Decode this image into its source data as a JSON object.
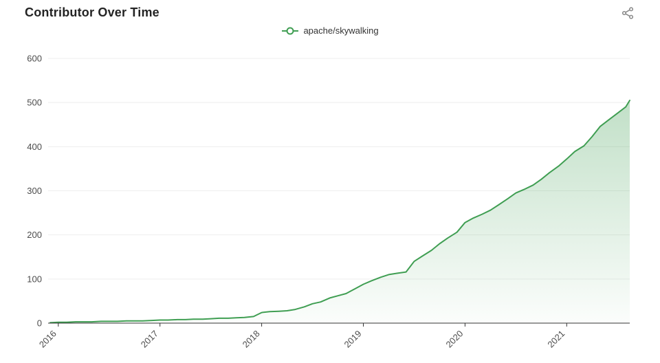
{
  "header": {
    "title": "Contributor Over Time"
  },
  "legend": {
    "label": "apache/skywalking"
  },
  "chart_data": {
    "type": "area",
    "title": "Contributor Over Time",
    "xlabel": "",
    "ylabel": "",
    "legend_position": "top",
    "grid": true,
    "x_ticks": [
      2016,
      2017,
      2018,
      2019,
      2020,
      2021
    ],
    "y_ticks": [
      0,
      100,
      200,
      300,
      400,
      500,
      600
    ],
    "xlim": [
      2015.9,
      2021.62
    ],
    "ylim": [
      0,
      600
    ],
    "colors": {
      "line": "#3f9e52",
      "area_top": "rgba(63,158,82,0.32)",
      "area_bottom": "rgba(63,158,82,0.02)",
      "axis": "#333333",
      "grid": "#eeeeee",
      "label": "#4c4c4c",
      "icon": "#8a8a8a"
    },
    "series": [
      {
        "name": "apache/skywalking",
        "points": [
          [
            2015.92,
            1
          ],
          [
            2016.0,
            2
          ],
          [
            2016.08,
            2
          ],
          [
            2016.17,
            3
          ],
          [
            2016.25,
            3
          ],
          [
            2016.33,
            3
          ],
          [
            2016.42,
            4
          ],
          [
            2016.5,
            4
          ],
          [
            2016.58,
            4
          ],
          [
            2016.67,
            5
          ],
          [
            2016.75,
            5
          ],
          [
            2016.83,
            5
          ],
          [
            2016.92,
            6
          ],
          [
            2017.0,
            7
          ],
          [
            2017.08,
            7
          ],
          [
            2017.17,
            8
          ],
          [
            2017.25,
            8
          ],
          [
            2017.33,
            9
          ],
          [
            2017.42,
            9
          ],
          [
            2017.5,
            10
          ],
          [
            2017.58,
            11
          ],
          [
            2017.67,
            11
          ],
          [
            2017.75,
            12
          ],
          [
            2017.83,
            13
          ],
          [
            2017.92,
            15
          ],
          [
            2018.0,
            24
          ],
          [
            2018.08,
            26
          ],
          [
            2018.17,
            27
          ],
          [
            2018.25,
            28
          ],
          [
            2018.33,
            31
          ],
          [
            2018.42,
            37
          ],
          [
            2018.5,
            44
          ],
          [
            2018.58,
            48
          ],
          [
            2018.67,
            57
          ],
          [
            2018.75,
            62
          ],
          [
            2018.83,
            67
          ],
          [
            2018.92,
            78
          ],
          [
            2019.0,
            88
          ],
          [
            2019.08,
            96
          ],
          [
            2019.17,
            104
          ],
          [
            2019.25,
            110
          ],
          [
            2019.33,
            113
          ],
          [
            2019.42,
            116
          ],
          [
            2019.5,
            140
          ],
          [
            2019.58,
            152
          ],
          [
            2019.67,
            165
          ],
          [
            2019.75,
            180
          ],
          [
            2019.83,
            193
          ],
          [
            2019.92,
            206
          ],
          [
            2020.0,
            228
          ],
          [
            2020.08,
            238
          ],
          [
            2020.17,
            247
          ],
          [
            2020.25,
            256
          ],
          [
            2020.33,
            268
          ],
          [
            2020.42,
            282
          ],
          [
            2020.5,
            295
          ],
          [
            2020.58,
            303
          ],
          [
            2020.67,
            313
          ],
          [
            2020.75,
            326
          ],
          [
            2020.83,
            341
          ],
          [
            2020.92,
            356
          ],
          [
            2021.0,
            372
          ],
          [
            2021.08,
            389
          ],
          [
            2021.17,
            402
          ],
          [
            2021.25,
            423
          ],
          [
            2021.33,
            446
          ],
          [
            2021.42,
            462
          ],
          [
            2021.5,
            476
          ],
          [
            2021.58,
            490
          ],
          [
            2021.62,
            505
          ]
        ]
      }
    ]
  }
}
